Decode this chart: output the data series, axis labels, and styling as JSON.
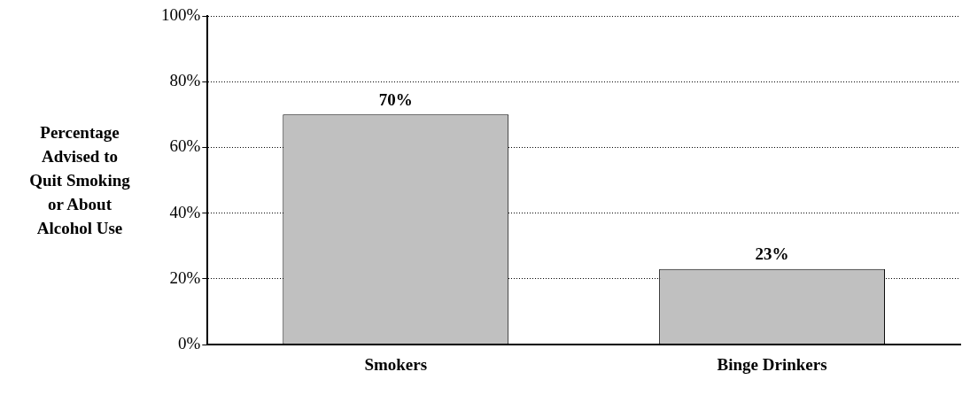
{
  "chart_data": {
    "type": "bar",
    "ylabel": "Percentage Advised to Quit Smoking or About Alcohol Use",
    "categories": [
      "Smokers",
      "Binge Drinkers"
    ],
    "values": [
      70,
      23
    ],
    "color": "#c0c0c0",
    "value_labels": [
      "70%",
      "23%"
    ],
    "ylim": [
      0,
      100
    ],
    "yticks": [
      {
        "value": 0,
        "label": "0%"
      },
      {
        "value": 20,
        "label": "20%"
      },
      {
        "value": 40,
        "label": "40%"
      },
      {
        "value": 60,
        "label": "60%"
      },
      {
        "value": 80,
        "label": "80%"
      },
      {
        "value": 100,
        "label": "100%"
      }
    ],
    "grid": "y",
    "legend": false
  }
}
